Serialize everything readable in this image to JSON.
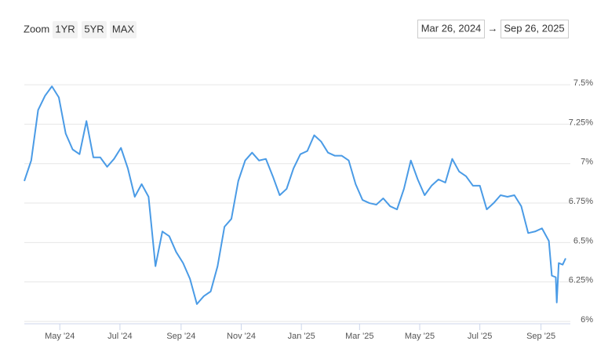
{
  "toolbar": {
    "zoom_label": "Zoom",
    "zoom_buttons": [
      "1YR",
      "5YR",
      "MAX"
    ],
    "range_from": "Mar 26, 2024",
    "range_separator": "→",
    "range_to": "Sep 26, 2025"
  },
  "chart_data": {
    "type": "line",
    "x": [
      "2024-03-26",
      "2024-04-02",
      "2024-04-09",
      "2024-04-16",
      "2024-04-23",
      "2024-04-30",
      "2024-05-07",
      "2024-05-14",
      "2024-05-21",
      "2024-05-28",
      "2024-06-04",
      "2024-06-11",
      "2024-06-18",
      "2024-06-25",
      "2024-07-02",
      "2024-07-09",
      "2024-07-16",
      "2024-07-23",
      "2024-07-30",
      "2024-08-06",
      "2024-08-13",
      "2024-08-20",
      "2024-08-27",
      "2024-09-03",
      "2024-09-10",
      "2024-09-17",
      "2024-09-24",
      "2024-10-01",
      "2024-10-08",
      "2024-10-15",
      "2024-10-22",
      "2024-10-29",
      "2024-11-05",
      "2024-11-12",
      "2024-11-19",
      "2024-11-26",
      "2024-12-03",
      "2024-12-10",
      "2024-12-17",
      "2024-12-24",
      "2024-12-31",
      "2025-01-07",
      "2025-01-14",
      "2025-01-21",
      "2025-01-28",
      "2025-02-04",
      "2025-02-11",
      "2025-02-18",
      "2025-02-25",
      "2025-03-04",
      "2025-03-11",
      "2025-03-18",
      "2025-03-25",
      "2025-04-01",
      "2025-04-08",
      "2025-04-15",
      "2025-04-22",
      "2025-04-29",
      "2025-05-06",
      "2025-05-13",
      "2025-05-20",
      "2025-05-27",
      "2025-06-03",
      "2025-06-10",
      "2025-06-17",
      "2025-06-24",
      "2025-07-01",
      "2025-07-08",
      "2025-07-15",
      "2025-07-22",
      "2025-07-29",
      "2025-08-05",
      "2025-08-12",
      "2025-08-19",
      "2025-08-26",
      "2025-09-02",
      "2025-09-09",
      "2025-09-12",
      "2025-09-16",
      "2025-09-17",
      "2025-09-19",
      "2025-09-23",
      "2025-09-26"
    ],
    "series": [
      {
        "color": "#4a9be6",
        "values": [
          6.89,
          7.02,
          7.34,
          7.43,
          7.49,
          7.42,
          7.19,
          7.09,
          7.06,
          7.27,
          7.04,
          7.04,
          6.98,
          7.03,
          7.1,
          6.97,
          6.79,
          6.87,
          6.79,
          6.35,
          6.57,
          6.54,
          6.44,
          6.37,
          6.27,
          6.11,
          6.16,
          6.19,
          6.35,
          6.6,
          6.65,
          6.89,
          7.02,
          7.07,
          7.02,
          7.03,
          6.92,
          6.8,
          6.84,
          6.97,
          7.06,
          7.08,
          7.18,
          7.14,
          7.07,
          7.05,
          7.05,
          7.02,
          6.87,
          6.77,
          6.75,
          6.74,
          6.78,
          6.73,
          6.71,
          6.84,
          7.02,
          6.9,
          6.8,
          6.86,
          6.9,
          6.88,
          7.03,
          6.95,
          6.92,
          6.86,
          6.86,
          6.71,
          6.75,
          6.8,
          6.79,
          6.8,
          6.73,
          6.56,
          6.57,
          6.59,
          6.51,
          6.29,
          6.28,
          6.12,
          6.37,
          6.36,
          6.4
        ]
      }
    ],
    "xlim": [
      "2024-03-26",
      "2025-09-26"
    ],
    "xticks": [
      {
        "value": "2024-05-01",
        "label": "May '24"
      },
      {
        "value": "2024-07-01",
        "label": "Jul '24"
      },
      {
        "value": "2024-09-01",
        "label": "Sep '24"
      },
      {
        "value": "2024-11-01",
        "label": "Nov '24"
      },
      {
        "value": "2025-01-01",
        "label": "Jan '25"
      },
      {
        "value": "2025-03-01",
        "label": "Mar '25"
      },
      {
        "value": "2025-05-01",
        "label": "May '25"
      },
      {
        "value": "2025-07-01",
        "label": "Jul '25"
      },
      {
        "value": "2025-09-01",
        "label": "Sep '25"
      }
    ],
    "ylim": [
      5.985,
      7.6
    ],
    "yticks": [
      {
        "value": 6,
        "label": "6%"
      },
      {
        "value": 6.25,
        "label": "6.25%"
      },
      {
        "value": 6.5,
        "label": "6.5%"
      },
      {
        "value": 6.75,
        "label": "6.75%"
      },
      {
        "value": 7,
        "label": "7%"
      },
      {
        "value": 7.25,
        "label": "7.25%"
      },
      {
        "value": 7.5,
        "label": "7.5%"
      }
    ],
    "grid": true
  }
}
